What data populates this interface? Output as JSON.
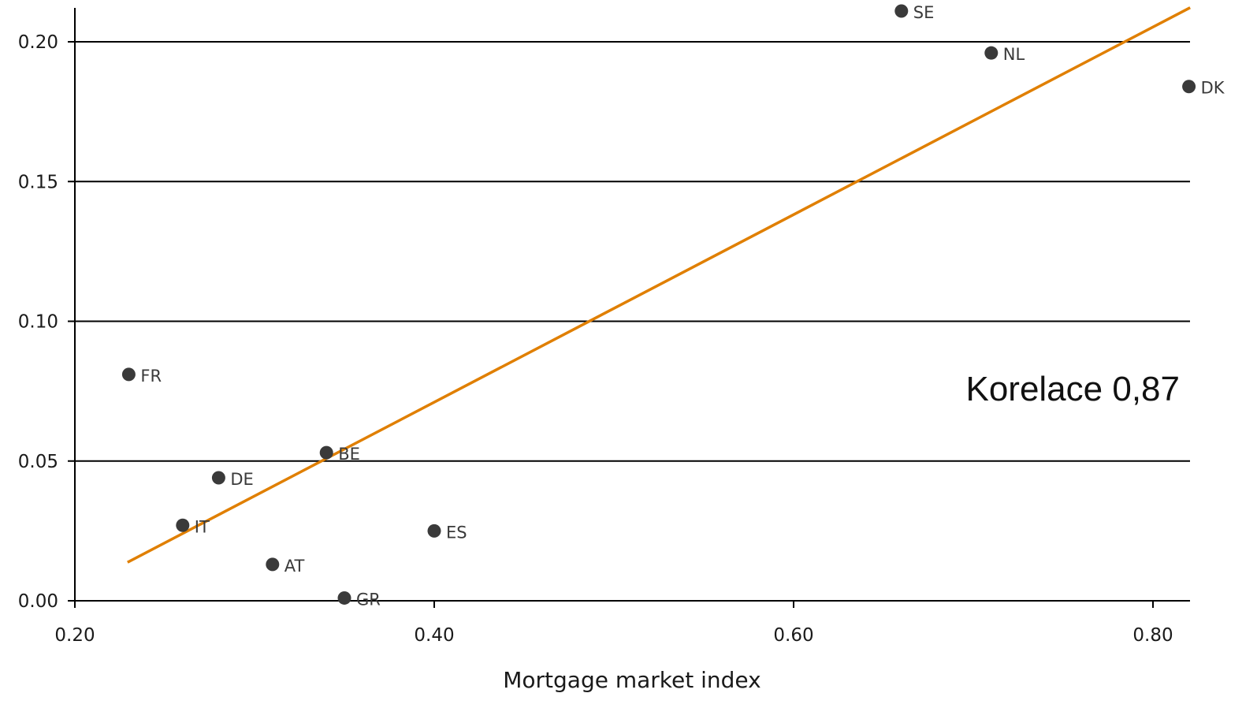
{
  "chart_data": {
    "type": "scatter",
    "title": "",
    "xlabel": "Mortgage market index",
    "ylabel": "",
    "xlim": [
      0.2,
      0.82
    ],
    "ylim": [
      0.0,
      0.21
    ],
    "xticks": [
      0.2,
      0.4,
      0.6,
      0.8
    ],
    "xtick_labels": [
      "0.20",
      "0.40",
      "0.60",
      "0.80"
    ],
    "yticks": [
      0.0,
      0.05,
      0.1,
      0.15,
      0.2
    ],
    "ytick_labels": [
      "0.00",
      "0.05",
      "0.10",
      "0.15",
      "0.20"
    ],
    "grid": "horizontal",
    "points": [
      {
        "label": "SE",
        "x": 0.66,
        "y": 0.211
      },
      {
        "label": "NL",
        "x": 0.71,
        "y": 0.196
      },
      {
        "label": "DK",
        "x": 0.82,
        "y": 0.184
      },
      {
        "label": "FR",
        "x": 0.23,
        "y": 0.081
      },
      {
        "label": "BE",
        "x": 0.34,
        "y": 0.053
      },
      {
        "label": "DE",
        "x": 0.28,
        "y": 0.044
      },
      {
        "label": "IT",
        "x": 0.26,
        "y": 0.027
      },
      {
        "label": "ES",
        "x": 0.4,
        "y": 0.025
      },
      {
        "label": "AT",
        "x": 0.31,
        "y": 0.013
      },
      {
        "label": "GR",
        "x": 0.35,
        "y": 0.001
      }
    ],
    "trendline": {
      "x": [
        0.23,
        0.82
      ],
      "y": [
        0.014,
        0.212
      ],
      "color": "#e07f00"
    },
    "point_color": "#3a3a3a",
    "annotation": "Korelace 0,87"
  }
}
